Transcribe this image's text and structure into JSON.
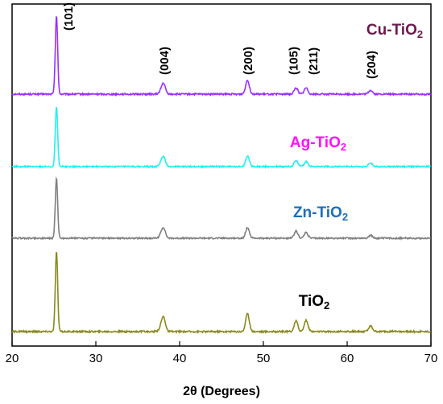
{
  "chart_data": {
    "type": "line",
    "xlabel": "2θ (Degrees)",
    "xlim": [
      20,
      70
    ],
    "x_ticks": [
      20,
      30,
      40,
      50,
      60,
      70
    ],
    "y_ticks_shown": false,
    "grid": false,
    "series": [
      {
        "name": "Cu-TiO2",
        "label_main": "Cu-TiO",
        "label_sub": "2",
        "color": "#9b30ff",
        "peaks": [
          [
            25.3,
            1.0
          ],
          [
            37.8,
            0.04
          ],
          [
            38.1,
            0.12
          ],
          [
            48.1,
            0.18
          ],
          [
            53.9,
            0.08
          ],
          [
            55.1,
            0.08
          ],
          [
            62.8,
            0.05
          ]
        ]
      },
      {
        "name": "Ag-TiO2",
        "label_main": "Ag-TiO",
        "label_sub": "2",
        "color": "#22f0f0",
        "peaks": [
          [
            25.3,
            0.85
          ],
          [
            37.8,
            0.05
          ],
          [
            38.1,
            0.12
          ],
          [
            48.1,
            0.15
          ],
          [
            53.9,
            0.09
          ],
          [
            55.1,
            0.07
          ],
          [
            62.8,
            0.05
          ]
        ]
      },
      {
        "name": "Zn-TiO2",
        "label_main": "Zn-TiO",
        "label_sub": "2",
        "color": "#808080",
        "peaks": [
          [
            25.3,
            0.85
          ],
          [
            37.8,
            0.05
          ],
          [
            38.1,
            0.13
          ],
          [
            48.1,
            0.15
          ],
          [
            53.9,
            0.1
          ],
          [
            55.1,
            0.08
          ],
          [
            62.8,
            0.04
          ]
        ]
      },
      {
        "name": "TiO2",
        "label_main": "TiO",
        "label_sub": "2",
        "color": "#8a8a1e",
        "peaks": [
          [
            25.3,
            1.0
          ],
          [
            37.8,
            0.06
          ],
          [
            38.1,
            0.16
          ],
          [
            48.1,
            0.22
          ],
          [
            53.9,
            0.13
          ],
          [
            55.1,
            0.14
          ],
          [
            62.8,
            0.07
          ]
        ]
      }
    ],
    "peak_annotations": [
      {
        "label": "(101)",
        "x": 25.3
      },
      {
        "label": "(004)",
        "x": 38.1
      },
      {
        "label": "(200)",
        "x": 48.1
      },
      {
        "label": "(105)",
        "x": 53.9
      },
      {
        "label": "(211)",
        "x": 55.1
      },
      {
        "label": "(204)",
        "x": 62.8
      }
    ],
    "label_colors": {
      "Cu-TiO2": "#6a1b4d",
      "Ag-TiO2": "#ff10ff",
      "Zn-TiO2": "#1e6fb8",
      "TiO2": "#000000"
    }
  }
}
